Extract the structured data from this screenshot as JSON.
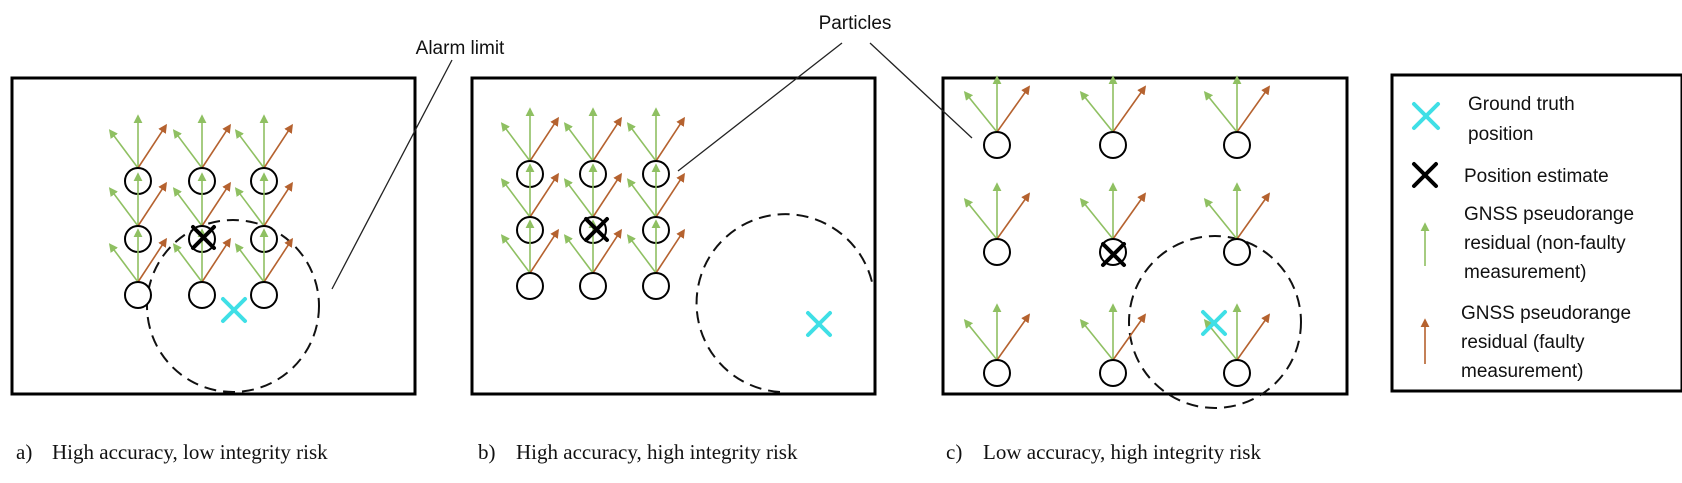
{
  "panels": [
    {
      "letter": "a)",
      "caption": "High accuracy, low integrity risk"
    },
    {
      "letter": "b)",
      "caption": "High accuracy, high integrity risk"
    },
    {
      "letter": "c)",
      "caption": "Low accuracy, high integrity risk"
    }
  ],
  "callouts": {
    "alarm_limit": "Alarm limit",
    "particles": "Particles"
  },
  "legend": {
    "ground_truth": [
      "Ground truth",
      "position"
    ],
    "position_estimate": [
      "Position estimate"
    ],
    "non_faulty": [
      "GNSS pseudorange",
      "residual (non-faulty",
      "measurement)"
    ],
    "faulty": [
      "GNSS pseudorange",
      "residual (faulty",
      "measurement)"
    ]
  },
  "colors": {
    "ground_truth": "#3fdfe6",
    "non_faulty_residual": "#8fc062",
    "faulty_residual": "#b5622f",
    "particle_outline": "#000000"
  }
}
